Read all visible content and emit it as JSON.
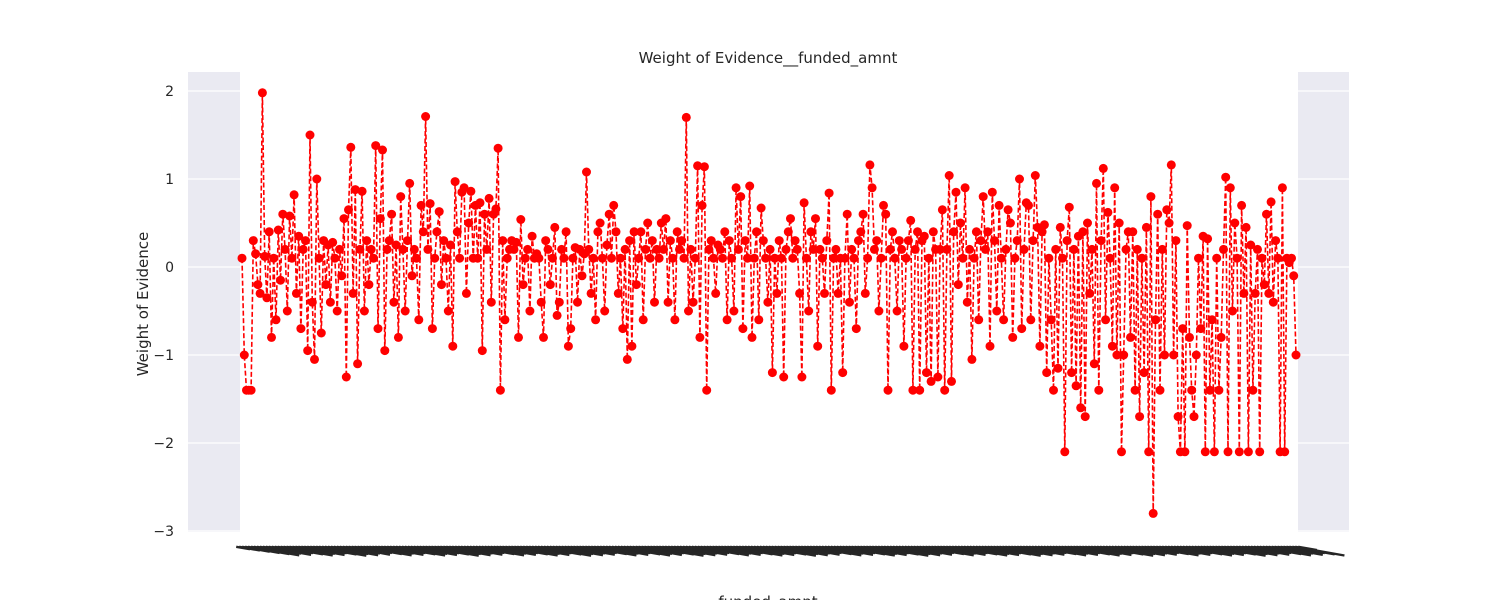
{
  "chart_data": {
    "type": "line",
    "title": "Weight of Evidence__funded_amnt",
    "xlabel": "funded_amnt",
    "ylabel": "Weight of Evidence",
    "ylim": [
      -3.0,
      2.2
    ],
    "yticks": [
      2,
      1,
      0,
      -1,
      -2,
      -3
    ],
    "ytick_labels": [
      "2",
      "1",
      "0",
      "−1",
      "−2",
      "−3"
    ],
    "grid": true,
    "line_color": "#ff0000",
    "background_color": "#eaeaf2",
    "series": [
      {
        "values": [
          0.1,
          -1.0,
          -1.4,
          -1.4,
          -1.4,
          0.3,
          0.15,
          -0.2,
          -0.3,
          1.98,
          0.12,
          -0.35,
          0.4,
          -0.8,
          0.1,
          -0.6,
          0.42,
          -0.15,
          0.6,
          0.2,
          -0.5,
          0.58,
          0.1,
          0.82,
          -0.3,
          0.35,
          -0.7,
          0.2,
          0.3,
          -0.95,
          1.5,
          -0.4,
          -1.05,
          1.0,
          0.1,
          -0.75,
          0.3,
          -0.2,
          0.25,
          -0.4,
          0.28,
          0.1,
          -0.5,
          0.2,
          -0.1,
          0.55,
          -1.25,
          0.65,
          1.36,
          -0.3,
          0.88,
          -1.1,
          0.2,
          0.86,
          -0.5,
          0.3,
          -0.2,
          0.2,
          0.1,
          1.38,
          -0.7,
          0.55,
          1.33,
          -0.95,
          0.2,
          0.3,
          0.6,
          -0.4,
          0.25,
          -0.8,
          0.8,
          0.2,
          -0.5,
          0.3,
          0.95,
          -0.1,
          0.2,
          0.1,
          -0.6,
          0.7,
          0.4,
          1.71,
          0.2,
          0.72,
          -0.7,
          0.1,
          0.4,
          0.63,
          -0.2,
          0.3,
          0.1,
          -0.5,
          0.25,
          -0.9,
          0.97,
          0.4,
          0.1,
          0.85,
          0.9,
          -0.3,
          0.5,
          0.86,
          0.1,
          0.7,
          0.1,
          0.73,
          -0.95,
          0.6,
          0.2,
          0.78,
          -0.4,
          0.6,
          0.66,
          1.35,
          -1.4,
          0.3,
          -0.6,
          0.1,
          0.2,
          0.3,
          0.2,
          0.28,
          -0.8,
          0.54,
          -0.2,
          0.1,
          0.2,
          -0.5,
          0.35,
          0.1,
          0.15,
          0.1,
          -0.4,
          -0.8,
          0.3,
          0.2,
          -0.2,
          0.1,
          0.45,
          -0.55,
          -0.4,
          0.2,
          0.1,
          0.4,
          -0.9,
          -0.7,
          0.1,
          0.22,
          -0.4,
          0.2,
          -0.1,
          0.15,
          1.08,
          0.2,
          -0.3,
          0.1,
          -0.6,
          0.4,
          0.5,
          0.1,
          -0.5,
          0.25,
          0.6,
          0.1,
          0.7,
          0.4,
          -0.3,
          0.1,
          -0.7,
          0.2,
          -1.05,
          0.3,
          -0.9,
          0.4,
          -0.2,
          0.1,
          0.4,
          -0.6,
          0.2,
          0.5,
          0.1,
          0.3,
          -0.4,
          0.2,
          0.1,
          0.5,
          0.2,
          0.55,
          -0.4,
          0.3,
          0.1,
          -0.6,
          0.4,
          0.2,
          0.3,
          0.1,
          1.7,
          -0.5,
          0.2,
          -0.4,
          0.1,
          1.15,
          -0.8,
          0.7,
          1.14,
          -1.4,
          0.2,
          0.3,
          0.1,
          -0.3,
          0.25,
          0.2,
          0.1,
          0.4,
          -0.6,
          0.3,
          0.1,
          -0.5,
          0.9,
          0.2,
          0.8,
          -0.7,
          0.3,
          0.1,
          0.92,
          -0.8,
          0.1,
          0.4,
          -0.6,
          0.67,
          0.3,
          0.1,
          -0.4,
          0.2,
          -1.2,
          0.1,
          -0.3,
          0.3,
          0.1,
          -1.25,
          0.2,
          0.4,
          0.55,
          0.1,
          0.3,
          0.2,
          -0.3,
          -1.25,
          0.73,
          0.1,
          -0.5,
          0.4,
          0.2,
          0.55,
          -0.9,
          0.2,
          0.1,
          -0.3,
          0.3,
          0.84,
          -1.4,
          0.1,
          0.2,
          -0.3,
          0.1,
          -1.2,
          0.1,
          0.6,
          -0.4,
          0.2,
          0.1,
          -0.7,
          0.3,
          0.4,
          0.6,
          -0.3,
          0.1,
          1.16,
          0.9,
          0.2,
          0.3,
          -0.5,
          0.1,
          0.7,
          0.6,
          -1.4,
          0.2,
          0.4,
          0.1,
          -0.5,
          0.3,
          0.2,
          -0.9,
          0.1,
          0.3,
          0.53,
          -1.4,
          0.2,
          0.4,
          -1.4,
          0.3,
          0.35,
          -1.2,
          0.1,
          -1.3,
          0.4,
          0.2,
          -1.25,
          0.2,
          0.65,
          -1.4,
          0.2,
          1.04,
          -1.3,
          0.4,
          0.85,
          -0.2,
          0.5,
          0.1,
          0.9,
          -0.4,
          0.2,
          -1.05,
          0.1,
          0.4,
          -0.6,
          0.3,
          0.8,
          0.2,
          0.4,
          -0.9,
          0.85,
          0.3,
          -0.5,
          0.7,
          0.1,
          -0.6,
          0.2,
          0.65,
          0.5,
          -0.8,
          0.1,
          0.3,
          1.0,
          -0.7,
          0.2,
          0.73,
          0.7,
          -0.6,
          0.3,
          1.04,
          0.45,
          -0.9,
          0.4,
          0.48,
          -1.2,
          0.1,
          -0.6,
          -1.4,
          0.2,
          -1.15,
          0.45,
          0.1,
          -2.1,
          0.3,
          0.68,
          -1.2,
          0.2,
          -1.35,
          0.35,
          -1.6,
          0.4,
          -1.7,
          0.5,
          -0.3,
          0.2,
          -1.1,
          0.95,
          -1.4,
          0.3,
          1.12,
          -0.6,
          0.62,
          0.1,
          -0.9,
          0.9,
          -1.0,
          0.5,
          -2.1,
          -1.0,
          0.2,
          0.4,
          -0.8,
          0.4,
          -1.4,
          0.2,
          -1.7,
          0.1,
          -1.2,
          0.45,
          -2.1,
          0.8,
          -2.8,
          -0.6,
          0.6,
          -1.4,
          0.2,
          -1.0,
          0.65,
          0.5,
          1.16,
          -1.0,
          0.3,
          -1.7,
          -2.1,
          -0.7,
          -2.1,
          0.47,
          -0.8,
          -1.4,
          -1.7,
          -1.0,
          0.1,
          -0.7,
          0.35,
          -2.1,
          0.32,
          -1.4,
          -0.6,
          -2.1,
          0.1,
          -1.4,
          -0.8,
          0.2,
          1.02,
          -2.1,
          0.9,
          -0.5,
          0.5,
          0.1,
          -2.1,
          0.7,
          -0.3,
          0.45,
          -2.1,
          0.25,
          -1.4,
          -0.3,
          0.2,
          -2.1,
          0.1,
          -0.2,
          0.6,
          -0.3,
          0.74,
          -0.4,
          0.3,
          0.1,
          -2.1,
          0.9,
          -2.1,
          0.1,
          0.05,
          0.1,
          -0.1,
          -1.0
        ]
      }
    ]
  }
}
